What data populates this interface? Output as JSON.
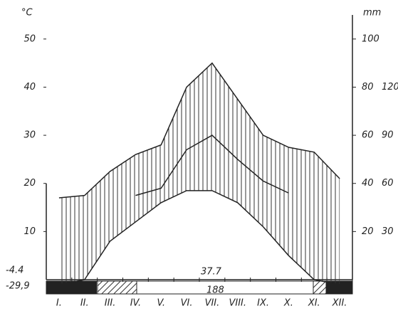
{
  "chart_data": {
    "type": "climate",
    "y_label": "°C",
    "y2_label": "mm",
    "categories": [
      "I.",
      "II.",
      "III.",
      "IV.",
      "V.",
      "VI.",
      "VII.",
      "VIII.",
      "IX.",
      "X.",
      "XI.",
      "XII."
    ],
    "series": [
      {
        "name": "upper",
        "color": "#222222",
        "values": [
          17,
          17.5,
          22.5,
          26,
          28,
          40,
          45,
          37.5,
          30,
          27.5,
          26.5,
          21
        ]
      },
      {
        "name": "lower",
        "color": "#222222",
        "values": [
          -1,
          0,
          8,
          12,
          16,
          18.5,
          18.5,
          16,
          11,
          5,
          0,
          -1
        ]
      },
      {
        "name": "middle",
        "color": "#222222",
        "values": [
          null,
          null,
          null,
          17.5,
          19,
          27,
          30,
          25,
          20.5,
          18,
          null,
          null
        ]
      }
    ],
    "ylim": [
      0,
      55
    ],
    "yticks": [
      10,
      20,
      30,
      40,
      50
    ],
    "y2lim": [
      0,
      110
    ],
    "y2ticks": [
      20,
      40,
      60,
      80,
      100
    ],
    "y2ticks_secondary": [
      {
        "value": 20,
        "label": "30"
      },
      {
        "value": 40,
        "label": "60"
      },
      {
        "value": 60,
        "label": "90"
      },
      {
        "value": 80,
        "label": "120"
      }
    ],
    "annotations": [
      "-4.4",
      "-29,9",
      "37.7",
      "188"
    ]
  }
}
